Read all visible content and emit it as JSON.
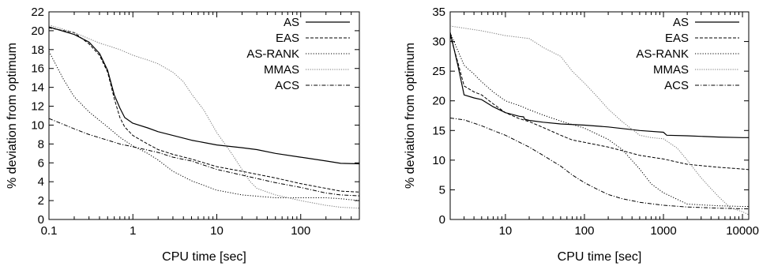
{
  "chart_data": [
    {
      "type": "line",
      "xlabel": "CPU time [sec]",
      "ylabel": "% deviation from optimum",
      "x_scale": "log",
      "xlim": [
        0.1,
        500
      ],
      "ylim": [
        0,
        22
      ],
      "x_ticks": [
        {
          "v": 0.1,
          "label": "0.1"
        },
        {
          "v": 1,
          "label": "1"
        },
        {
          "v": 10,
          "label": "10"
        },
        {
          "v": 100,
          "label": "100"
        }
      ],
      "y_ticks": [
        0,
        2,
        4,
        6,
        8,
        10,
        12,
        14,
        16,
        18,
        20,
        22
      ],
      "grid": false,
      "legend_position": "top-right",
      "series": [
        {
          "name": "AS",
          "style": "solid",
          "points": [
            [
              0.1,
              20.4
            ],
            [
              0.2,
              19.6
            ],
            [
              0.3,
              18.8
            ],
            [
              0.4,
              17.6
            ],
            [
              0.5,
              15.8
            ],
            [
              0.6,
              13.2
            ],
            [
              0.7,
              11.8
            ],
            [
              0.8,
              10.8
            ],
            [
              1,
              10.2
            ],
            [
              1.5,
              9.7
            ],
            [
              2,
              9.3
            ],
            [
              3,
              8.9
            ],
            [
              5,
              8.4
            ],
            [
              10,
              7.9
            ],
            [
              20,
              7.6
            ],
            [
              30,
              7.4
            ],
            [
              50,
              7.0
            ],
            [
              100,
              6.6
            ],
            [
              200,
              6.2
            ],
            [
              300,
              5.95
            ],
            [
              500,
              5.9
            ]
          ]
        },
        {
          "name": "EAS",
          "style": "dashed",
          "points": [
            [
              0.1,
              20.3
            ],
            [
              0.2,
              19.8
            ],
            [
              0.3,
              18.6
            ],
            [
              0.4,
              17.4
            ],
            [
              0.5,
              15.6
            ],
            [
              0.6,
              12.8
            ],
            [
              0.7,
              10.8
            ],
            [
              0.8,
              9.8
            ],
            [
              1,
              8.9
            ],
            [
              1.5,
              8.0
            ],
            [
              2,
              7.4
            ],
            [
              3,
              6.9
            ],
            [
              5,
              6.4
            ],
            [
              10,
              5.6
            ],
            [
              20,
              5.1
            ],
            [
              50,
              4.4
            ],
            [
              100,
              3.8
            ],
            [
              200,
              3.3
            ],
            [
              300,
              3.0
            ],
            [
              500,
              2.9
            ]
          ]
        },
        {
          "name": "AS-RANK",
          "style": "dotted",
          "points": [
            [
              0.1,
              17.8
            ],
            [
              0.15,
              14.8
            ],
            [
              0.2,
              13.0
            ],
            [
              0.3,
              11.4
            ],
            [
              0.5,
              9.8
            ],
            [
              0.7,
              8.7
            ],
            [
              1,
              7.8
            ],
            [
              1.5,
              7.0
            ],
            [
              2,
              6.3
            ],
            [
              3,
              5.1
            ],
            [
              5,
              4.1
            ],
            [
              10,
              3.1
            ],
            [
              20,
              2.6
            ],
            [
              50,
              2.3
            ],
            [
              100,
              2.3
            ],
            [
              200,
              2.3
            ],
            [
              300,
              2.2
            ],
            [
              500,
              2.0
            ]
          ]
        },
        {
          "name": "MMAS",
          "style": "dotted-light",
          "points": [
            [
              0.1,
              20.6
            ],
            [
              0.2,
              19.8
            ],
            [
              0.4,
              18.7
            ],
            [
              0.7,
              18.0
            ],
            [
              1,
              17.4
            ],
            [
              1.5,
              16.9
            ],
            [
              2,
              16.5
            ],
            [
              3,
              15.6
            ],
            [
              4,
              14.6
            ],
            [
              5,
              13.3
            ],
            [
              7,
              11.6
            ],
            [
              10,
              9.2
            ],
            [
              15,
              7.0
            ],
            [
              20,
              5.3
            ],
            [
              25,
              4.0
            ],
            [
              30,
              3.3
            ],
            [
              50,
              2.6
            ],
            [
              100,
              2.0
            ],
            [
              200,
              1.5
            ],
            [
              300,
              1.3
            ],
            [
              500,
              1.2
            ]
          ]
        },
        {
          "name": "ACS",
          "style": "dash-dot",
          "points": [
            [
              0.1,
              10.7
            ],
            [
              0.2,
              9.6
            ],
            [
              0.3,
              9.0
            ],
            [
              0.5,
              8.4
            ],
            [
              0.7,
              8.0
            ],
            [
              1,
              7.7
            ],
            [
              2,
              7.1
            ],
            [
              3,
              6.6
            ],
            [
              5,
              6.2
            ],
            [
              10,
              5.3
            ],
            [
              20,
              4.7
            ],
            [
              50,
              3.9
            ],
            [
              100,
              3.4
            ],
            [
              200,
              2.8
            ],
            [
              300,
              2.6
            ],
            [
              500,
              2.5
            ]
          ]
        }
      ]
    },
    {
      "type": "line",
      "xlabel": "CPU time [sec]",
      "ylabel": "% deviation from optimum",
      "x_scale": "log",
      "xlim": [
        2,
        12000
      ],
      "ylim": [
        0,
        35
      ],
      "x_ticks": [
        {
          "v": 10,
          "label": "10"
        },
        {
          "v": 100,
          "label": "100"
        },
        {
          "v": 1000,
          "label": "1000"
        },
        {
          "v": 10000,
          "label": "10000"
        }
      ],
      "y_ticks": [
        0,
        5,
        10,
        15,
        20,
        25,
        30,
        35
      ],
      "grid": false,
      "legend_position": "top-right",
      "series": [
        {
          "name": "AS",
          "style": "solid",
          "points": [
            [
              2,
              31.5
            ],
            [
              2.5,
              26.0
            ],
            [
              3,
              21.0
            ],
            [
              4,
              20.5
            ],
            [
              5,
              20.2
            ],
            [
              7,
              19.0
            ],
            [
              10,
              18.0
            ],
            [
              15,
              17.4
            ],
            [
              17,
              17.3
            ],
            [
              17.5,
              16.9
            ],
            [
              20,
              16.7
            ],
            [
              30,
              16.4
            ],
            [
              50,
              16.1
            ],
            [
              100,
              15.9
            ],
            [
              200,
              15.6
            ],
            [
              500,
              15.0
            ],
            [
              1000,
              14.7
            ],
            [
              1100,
              14.2
            ],
            [
              2000,
              14.1
            ],
            [
              5000,
              13.9
            ],
            [
              10000,
              13.8
            ],
            [
              12000,
              13.8
            ]
          ]
        },
        {
          "name": "EAS",
          "style": "dashed",
          "points": [
            [
              2,
              31.0
            ],
            [
              2.5,
              26.5
            ],
            [
              3,
              22.5
            ],
            [
              4,
              21.5
            ],
            [
              5,
              21.0
            ],
            [
              7,
              19.5
            ],
            [
              10,
              18.0
            ],
            [
              15,
              17.0
            ],
            [
              20,
              16.5
            ],
            [
              30,
              15.5
            ],
            [
              50,
              14.2
            ],
            [
              70,
              13.4
            ],
            [
              100,
              13.0
            ],
            [
              200,
              12.2
            ],
            [
              300,
              11.6
            ],
            [
              500,
              10.8
            ],
            [
              1000,
              10.2
            ],
            [
              2000,
              9.3
            ],
            [
              5000,
              8.8
            ],
            [
              10000,
              8.5
            ],
            [
              12000,
              8.4
            ]
          ]
        },
        {
          "name": "AS-RANK",
          "style": "dotted",
          "points": [
            [
              2,
              31.5
            ],
            [
              3,
              26.0
            ],
            [
              4,
              24.5
            ],
            [
              5,
              23.2
            ],
            [
              7,
              21.5
            ],
            [
              10,
              20.0
            ],
            [
              15,
              19.2
            ],
            [
              20,
              18.5
            ],
            [
              30,
              17.6
            ],
            [
              50,
              16.6
            ],
            [
              100,
              15.4
            ],
            [
              200,
              13.5
            ],
            [
              300,
              11.8
            ],
            [
              500,
              8.5
            ],
            [
              700,
              6.0
            ],
            [
              1000,
              4.5
            ],
            [
              2000,
              2.6
            ],
            [
              5000,
              2.3
            ],
            [
              10000,
              2.2
            ],
            [
              12000,
              2.2
            ]
          ]
        },
        {
          "name": "MMAS",
          "style": "dotted-light",
          "points": [
            [
              2,
              32.6
            ],
            [
              5,
              31.8
            ],
            [
              10,
              31.0
            ],
            [
              20,
              30.5
            ],
            [
              30,
              29.0
            ],
            [
              50,
              27.5
            ],
            [
              70,
              25.0
            ],
            [
              100,
              23.0
            ],
            [
              150,
              20.5
            ],
            [
              200,
              18.6
            ],
            [
              300,
              16.5
            ],
            [
              500,
              14.2
            ],
            [
              700,
              13.8
            ],
            [
              1000,
              13.6
            ],
            [
              1500,
              12.0
            ],
            [
              2000,
              10.0
            ],
            [
              3000,
              7.0
            ],
            [
              5000,
              3.8
            ],
            [
              7000,
              2.0
            ],
            [
              10000,
              1.3
            ],
            [
              12000,
              0.8
            ]
          ]
        },
        {
          "name": "ACS",
          "style": "dash-dot",
          "points": [
            [
              2,
              17.1
            ],
            [
              3,
              16.8
            ],
            [
              5,
              15.8
            ],
            [
              7,
              15.0
            ],
            [
              10,
              14.2
            ],
            [
              20,
              12.2
            ],
            [
              30,
              10.8
            ],
            [
              50,
              9.0
            ],
            [
              70,
              7.5
            ],
            [
              100,
              6.2
            ],
            [
              150,
              5.0
            ],
            [
              200,
              4.2
            ],
            [
              300,
              3.5
            ],
            [
              500,
              2.9
            ],
            [
              1000,
              2.4
            ],
            [
              2000,
              2.1
            ],
            [
              5000,
              1.9
            ],
            [
              10000,
              1.8
            ],
            [
              12000,
              1.8
            ]
          ]
        }
      ]
    }
  ]
}
